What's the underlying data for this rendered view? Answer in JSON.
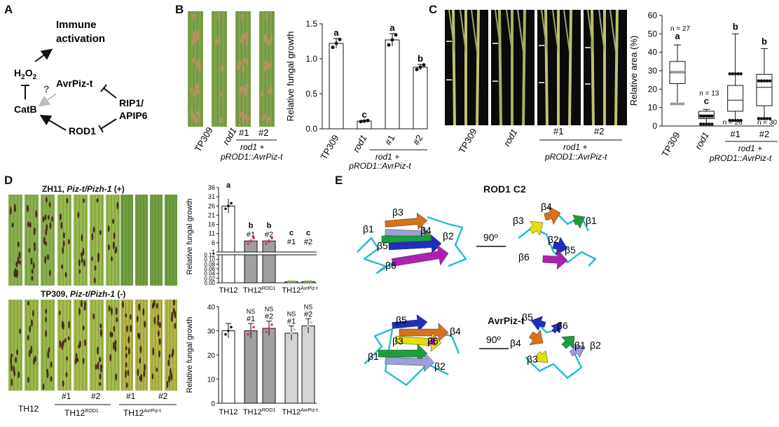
{
  "panels": {
    "A": {
      "label": "A",
      "nodes": {
        "immune": "Immune activation",
        "h2o2": "H2O2",
        "catb": "CatB",
        "avrpiz": "AvrPiz-t",
        "rip1": "RIP1/ APIP6",
        "rod1": "ROD1",
        "question": "?"
      }
    },
    "B": {
      "label": "B",
      "photo_labels": [
        "TP309",
        "rod1",
        "#1",
        "#2"
      ],
      "group_label": "rod1 + pROD1::AvrPiz-t",
      "chart_data": {
        "type": "bar",
        "ylabel": "Relative fungal growth",
        "categories": [
          "TP309",
          "rod1",
          "#1",
          "#2"
        ],
        "values": [
          1.22,
          0.11,
          1.27,
          0.88
        ],
        "errors": [
          0.07,
          0.01,
          0.09,
          0.04
        ],
        "letters": [
          "a",
          "c",
          "a",
          "b"
        ],
        "ylim": [
          0,
          1.5
        ],
        "yticks": [
          "0.0",
          "0.5",
          "1.0",
          "1.5"
        ],
        "group_label": "rod1 + pROD1::AvrPiz-t"
      }
    },
    "C": {
      "label": "C",
      "photo_labels": [
        "TP309",
        "rod1",
        "#1",
        "#2"
      ],
      "group_label": "rod1 + pROD1::AvrPiz-t",
      "chart_data": {
        "type": "box",
        "ylabel": "Relative area (%)",
        "categories": [
          "TP309",
          "rod1",
          "#1",
          "#2"
        ],
        "boxes": [
          {
            "min": 12,
            "q1": 23,
            "median": 29,
            "q3": 35,
            "max": 44
          },
          {
            "min": 1,
            "q1": 4,
            "median": 6,
            "q3": 8,
            "max": 9
          },
          {
            "min": 3,
            "q1": 8,
            "median": 14,
            "q3": 22,
            "max": 50
          },
          {
            "min": 4,
            "q1": 11,
            "median": 21,
            "q3": 28,
            "max": 42
          }
        ],
        "n": [
          "n = 27",
          "n = 13",
          "n = 26",
          "n = 30"
        ],
        "letters": [
          "a",
          "c",
          "b",
          "b"
        ],
        "ylim": [
          0,
          60
        ],
        "yticks": [
          "0",
          "10",
          "20",
          "30",
          "40",
          "50",
          "60"
        ],
        "group_label": "rod1 + pROD1::AvrPiz-t"
      }
    },
    "D": {
      "label": "D",
      "top_title": "ZH11, Piz-t/Pizh-1 (+)",
      "bottom_title": "TP309, Piz-t/Pizh-1 (-)",
      "photo_labels": [
        "TH12",
        "#1",
        "#2",
        "#1",
        "#2"
      ],
      "group_labels": [
        "TH12ROD1",
        "TH12AvrPiz-t"
      ],
      "chart_data": [
        {
          "type": "bar",
          "ylabel": "Relative fungal growth",
          "categories": [
            "TH12",
            "TH12ROD1",
            "TH12AvrPiz-t"
          ],
          "bars": [
            {
              "group": "TH12",
              "value": 26,
              "letter": "a",
              "rep": ""
            },
            {
              "group": "TH12ROD1",
              "value": 7,
              "letter": "b",
              "rep": "#1"
            },
            {
              "group": "TH12ROD1",
              "value": 7,
              "letter": "b",
              "rep": "#2"
            },
            {
              "group": "TH12AvrPiz-t",
              "value": 0.005,
              "letter": "c",
              "rep": "#1"
            },
            {
              "group": "TH12AvrPiz-t",
              "value": 0.005,
              "letter": "c",
              "rep": "#2"
            }
          ],
          "yticks_upper": [
            "1",
            "6",
            "11",
            "16",
            "21",
            "26",
            "31",
            "36"
          ],
          "yticks_lower": [
            "0.00",
            "0.02",
            "0.04",
            "0.06",
            "0.08",
            "0.10",
            "0.12"
          ],
          "x_tick_labels": [
            "TH12",
            "TH12ROD1",
            "TH12AvrPiz-t"
          ]
        },
        {
          "type": "bar",
          "ylabel": "Relative fungal growth",
          "categories": [
            "TH12",
            "TH12ROD1",
            "TH12AvrPiz-t"
          ],
          "bars": [
            {
              "group": "TH12",
              "value": 30,
              "letter": "",
              "rep": ""
            },
            {
              "group": "TH12ROD1",
              "value": 30,
              "letter": "NS",
              "rep": "#1"
            },
            {
              "group": "TH12ROD1",
              "value": 31,
              "letter": "NS",
              "rep": "#2"
            },
            {
              "group": "TH12AvrPiz-t",
              "value": 29,
              "letter": "NS",
              "rep": "#1"
            },
            {
              "group": "TH12AvrPiz-t",
              "value": 32,
              "letter": "NS",
              "rep": "#2"
            }
          ],
          "ylim": [
            0,
            40
          ],
          "yticks": [
            "0",
            "10",
            "20",
            "30",
            "40"
          ],
          "x_tick_labels": [
            "TH12",
            "TH12ROD1",
            "TH12AvrPiz-t"
          ]
        }
      ]
    },
    "E": {
      "label": "E",
      "top_title": "ROD1 C2",
      "bottom_title": "AvrPiz-t",
      "rotation": "90º",
      "top_left_strands": [
        "β3",
        "β1",
        "β4",
        "β2",
        "β5",
        "β6"
      ],
      "top_right_strands": [
        "β4",
        "β3",
        "β1",
        "β2",
        "β5",
        "β6"
      ],
      "bottom_left_strands": [
        "β5",
        "β4",
        "β3",
        "β6",
        "β1",
        "β2"
      ],
      "bottom_right_strands": [
        "β5",
        "β6",
        "β4",
        "β1",
        "β2",
        "β3"
      ]
    }
  },
  "colors": {
    "leaf_green": "#7ea24a",
    "leaf_yellow": "#c8c25a",
    "lesion": "#4a2a1a",
    "grey_bar": "#a0a0a0",
    "light_bar": "#d4d4d4",
    "strand_orange": "#d9701a",
    "strand_yellow": "#e6e000",
    "strand_blue": "#1e2fbf",
    "strand_purple": "#b020b0",
    "strand_green": "#1aa03a",
    "strand_lavender": "#9aa0d8",
    "coil_cyan": "#20c0d0"
  }
}
